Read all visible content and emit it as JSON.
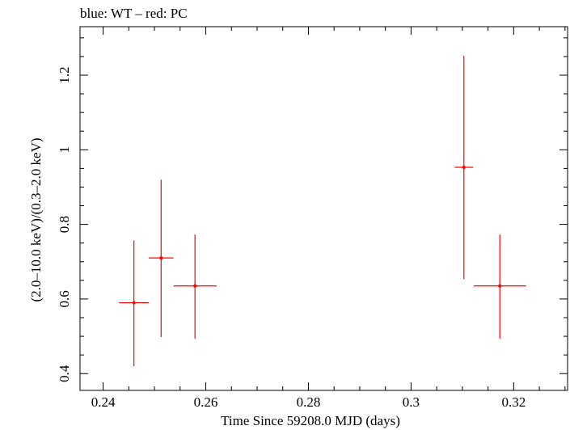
{
  "chart_data": {
    "type": "scatter",
    "title": "blue: WT – red: PC",
    "xlabel": "Time Since 59208.0 MJD (days)",
    "ylabel": "(2.0–10.0 keV)/(0.3–2.0 keV)",
    "xlim": [
      0.2355,
      0.3305
    ],
    "ylim": [
      0.355,
      1.33
    ],
    "x_ticks": [
      0.24,
      0.26,
      0.28,
      0.3,
      0.32
    ],
    "x_tick_labels": [
      "0.24",
      "0.26",
      "0.28",
      "0.3",
      "0.32"
    ],
    "y_ticks": [
      0.4,
      0.6,
      0.8,
      1.0,
      1.2
    ],
    "y_tick_labels": [
      "0.4",
      "0.6",
      "0.8",
      "1",
      "1.2"
    ],
    "grid": false,
    "series": [
      {
        "color": "#ff0000",
        "points": [
          {
            "x": 0.246,
            "xerr": 0.0029,
            "y": 0.59,
            "ylo": 0.42,
            "yhi": 0.757
          },
          {
            "x": 0.2513,
            "xerr": 0.0024,
            "y": 0.71,
            "ylo": 0.498,
            "yhi": 0.92
          },
          {
            "x": 0.2579,
            "xerr": 0.0042,
            "y": 0.635,
            "ylo": 0.494,
            "yhi": 0.773
          },
          {
            "x": 0.3103,
            "xerr": 0.0018,
            "y": 0.953,
            "ylo": 0.653,
            "yhi": 1.252
          },
          {
            "x": 0.3173,
            "xerr": 0.0051,
            "y": 0.635,
            "ylo": 0.494,
            "yhi": 0.773
          }
        ]
      }
    ]
  }
}
